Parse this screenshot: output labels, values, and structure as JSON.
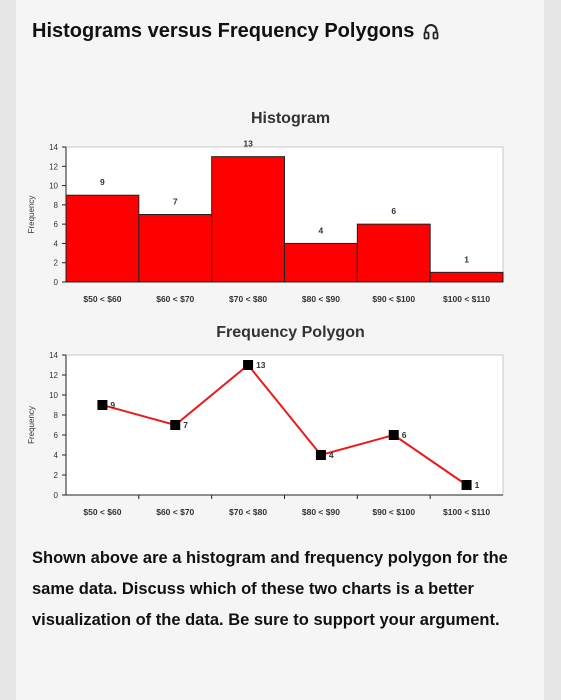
{
  "page": {
    "title": "Histograms versus Frequency Polygons",
    "title_icon": "headphones-icon",
    "question": "Shown above are a histogram and frequency polygon for the same data. Discuss which of these two charts is a better visualization of the data. Be sure to support your argument."
  },
  "chart_data": [
    {
      "type": "bar",
      "title": "Histogram",
      "ylabel": "Frequency",
      "xlabel": "",
      "categories": [
        "$50 < $60",
        "$60 < $70",
        "$70 < $80",
        "$80 < $90",
        "$90 < $100",
        "$100 < $110"
      ],
      "values": [
        9,
        7,
        13,
        4,
        6,
        1
      ],
      "yticks": [
        0,
        2,
        4,
        6,
        8,
        10,
        12,
        14
      ],
      "ylim": [
        0,
        14
      ],
      "color": "#ff0000",
      "bar_gap": "none",
      "data_labels": true
    },
    {
      "type": "line",
      "title": "Frequency Polygon",
      "ylabel": "Frequency",
      "xlabel": "",
      "categories": [
        "$50 < $60",
        "$60 < $70",
        "$70 < $80",
        "$80 < $90",
        "$90 < $100",
        "$100 < $110"
      ],
      "values": [
        9,
        7,
        13,
        4,
        6,
        1
      ],
      "yticks": [
        0,
        2,
        4,
        6,
        8,
        10,
        12,
        14
      ],
      "ylim": [
        0,
        14
      ],
      "line_color": "#e81c1c",
      "marker_color": "#000000",
      "marker": "square",
      "data_labels": true
    }
  ]
}
